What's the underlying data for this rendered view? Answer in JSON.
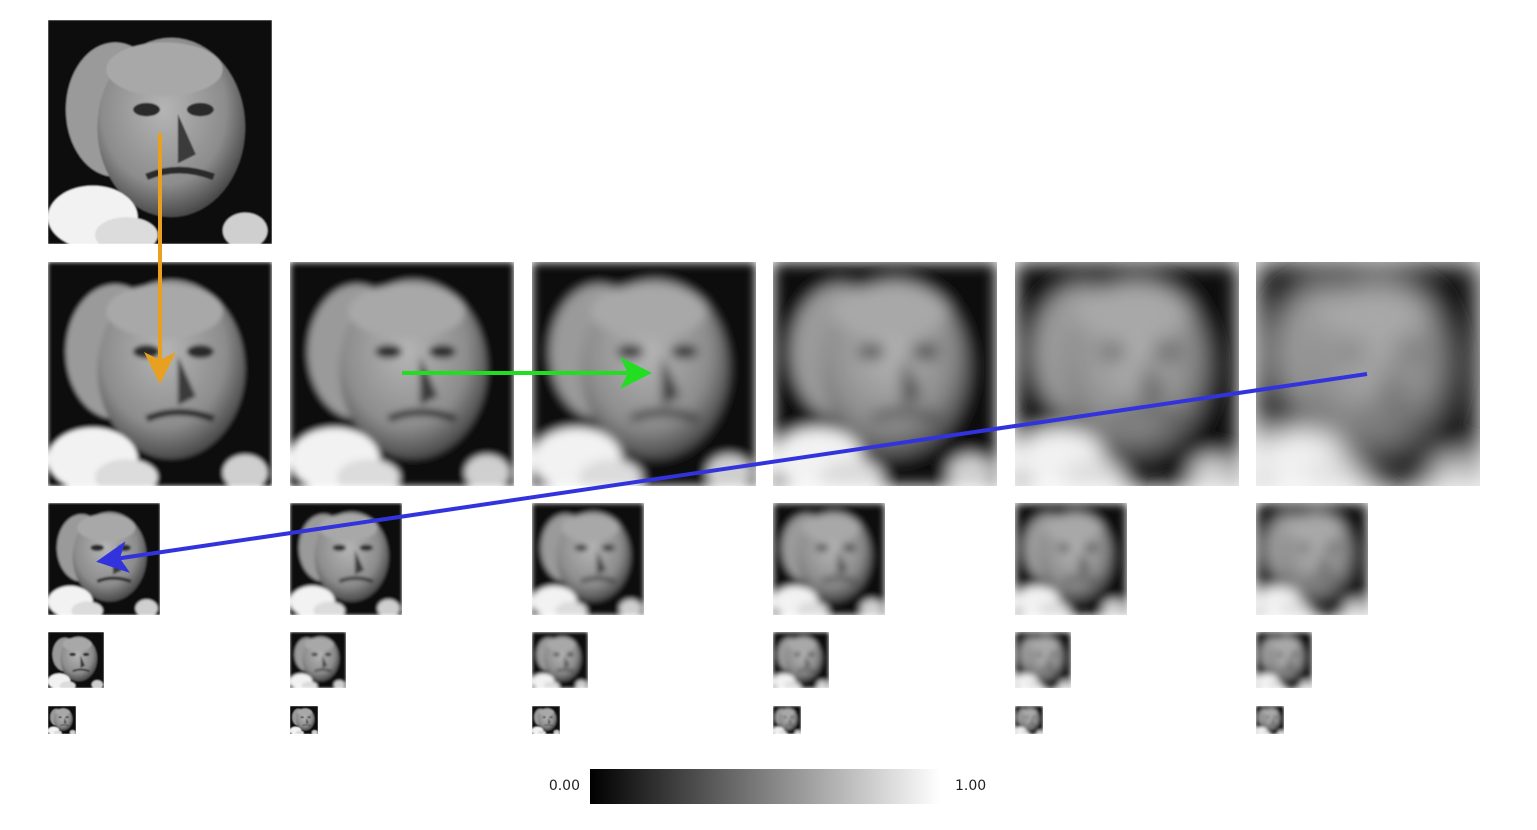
{
  "colorbar": {
    "min_label": "0.00",
    "max_label": "1.00"
  }
}
